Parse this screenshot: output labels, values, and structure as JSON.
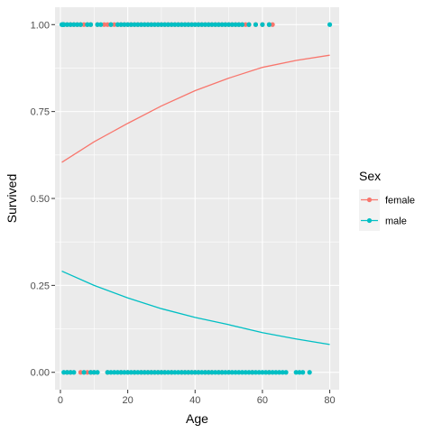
{
  "chart_data": {
    "type": "scatter",
    "xlabel": "Age",
    "ylabel": "Survived",
    "xlim": [
      -1.6,
      82.8
    ],
    "ylim": [
      -0.05,
      1.05
    ],
    "x_ticks": [
      0,
      20,
      40,
      60,
      80
    ],
    "y_ticks": [
      0.0,
      0.25,
      0.5,
      0.75,
      1.0
    ],
    "x_tick_labels": [
      "0",
      "20",
      "40",
      "60",
      "80"
    ],
    "y_tick_labels": [
      "0.00",
      "0.25",
      "0.50",
      "0.75",
      "1.00"
    ],
    "grid": true,
    "legend": {
      "title": "Sex",
      "position": "right",
      "entries": [
        "female",
        "male"
      ]
    },
    "colors": {
      "female": "#F8766D",
      "male": "#00BFC4"
    },
    "series": [
      {
        "name": "female",
        "color": "#F8766D",
        "points_survived_1": [
          1,
          2,
          3,
          4,
          5,
          6,
          7,
          8,
          9,
          11,
          13,
          14,
          15,
          16,
          17,
          18,
          19,
          20,
          21,
          22,
          23,
          24,
          25,
          26,
          27,
          28,
          29,
          30,
          31,
          32,
          33,
          34,
          35,
          36,
          37,
          38,
          39,
          40,
          41,
          42,
          43,
          44,
          45,
          46,
          47,
          48,
          49,
          50,
          51,
          52,
          53,
          54,
          55,
          56,
          58,
          60,
          62,
          63
        ],
        "points_survived_0": [
          2,
          3,
          6,
          8,
          9,
          10,
          14,
          18,
          20,
          22,
          24,
          25,
          26,
          27,
          28,
          29,
          30,
          31,
          33,
          36,
          37,
          38,
          39,
          40,
          41,
          43,
          44,
          45,
          47,
          48,
          50,
          57,
          62
        ],
        "fit_curve": {
          "x": [
            0.42,
            10,
            20,
            30,
            40,
            50,
            60,
            70,
            80
          ],
          "y": [
            0.604,
            0.663,
            0.716,
            0.766,
            0.81,
            0.846,
            0.877,
            0.897,
            0.912
          ]
        }
      },
      {
        "name": "male",
        "color": "#00BFC4",
        "points_survived_1": [
          0.42,
          0.67,
          0.83,
          0.92,
          1,
          2,
          3,
          4,
          5,
          6,
          8,
          9,
          11,
          12,
          15,
          17,
          18,
          19,
          20,
          21,
          22,
          23,
          24,
          25,
          26,
          27,
          28,
          29,
          30,
          31,
          32,
          33,
          34,
          35,
          36,
          37,
          38,
          39,
          40,
          41,
          42,
          43,
          44,
          45,
          46,
          47,
          48,
          49,
          50,
          51,
          52,
          53,
          54,
          56,
          58,
          60,
          62,
          80
        ],
        "points_survived_0": [
          1,
          2,
          3,
          4,
          7,
          9,
          10,
          11,
          14,
          15,
          16,
          17,
          18,
          19,
          20,
          21,
          22,
          23,
          24,
          25,
          26,
          27,
          28,
          29,
          30,
          31,
          32,
          33,
          34,
          35,
          36,
          37,
          38,
          39,
          40,
          41,
          42,
          43,
          44,
          45,
          46,
          47,
          48,
          49,
          50,
          51,
          52,
          53,
          54,
          55,
          56,
          57,
          58,
          59,
          60,
          61,
          62,
          63,
          64,
          65,
          66,
          67,
          70,
          71,
          72,
          74
        ],
        "fit_curve": {
          "x": [
            0.42,
            10,
            20,
            30,
            40,
            50,
            60,
            70,
            80
          ],
          "y": [
            0.291,
            0.25,
            0.214,
            0.183,
            0.158,
            0.137,
            0.114,
            0.096,
            0.08
          ]
        }
      }
    ]
  }
}
